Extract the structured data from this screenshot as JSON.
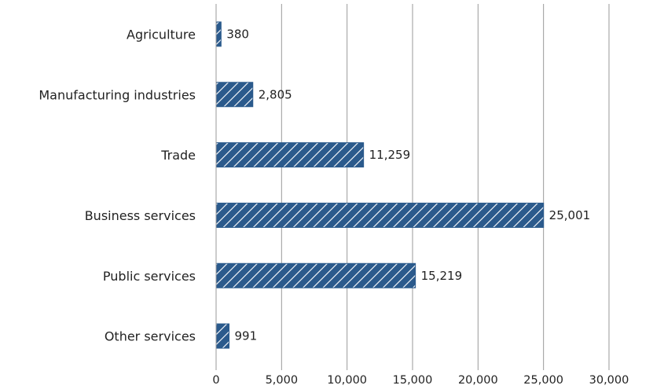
{
  "chart_data": {
    "type": "bar",
    "orientation": "horizontal",
    "categories": [
      "Agriculture",
      "Manufacturing industries",
      "Trade",
      "Business services",
      "Public services",
      "Other services"
    ],
    "values": [
      380,
      2805,
      11259,
      25001,
      15219,
      991
    ],
    "value_labels": [
      "380",
      "2,805",
      "11,259",
      "25,001",
      "15,219",
      "991"
    ],
    "xlim": [
      0,
      30000
    ],
    "xticks": [
      0,
      5000,
      10000,
      15000,
      20000,
      25000,
      30000
    ],
    "xtick_labels": [
      "0",
      "5,000",
      "10,000",
      "15,000",
      "20,000",
      "25,000",
      "30,000"
    ],
    "grid": "vertical",
    "bar_color": "#2b5a8c",
    "bar_pattern": "diagonal-hatch-white",
    "title": "",
    "xlabel": "",
    "ylabel": ""
  }
}
